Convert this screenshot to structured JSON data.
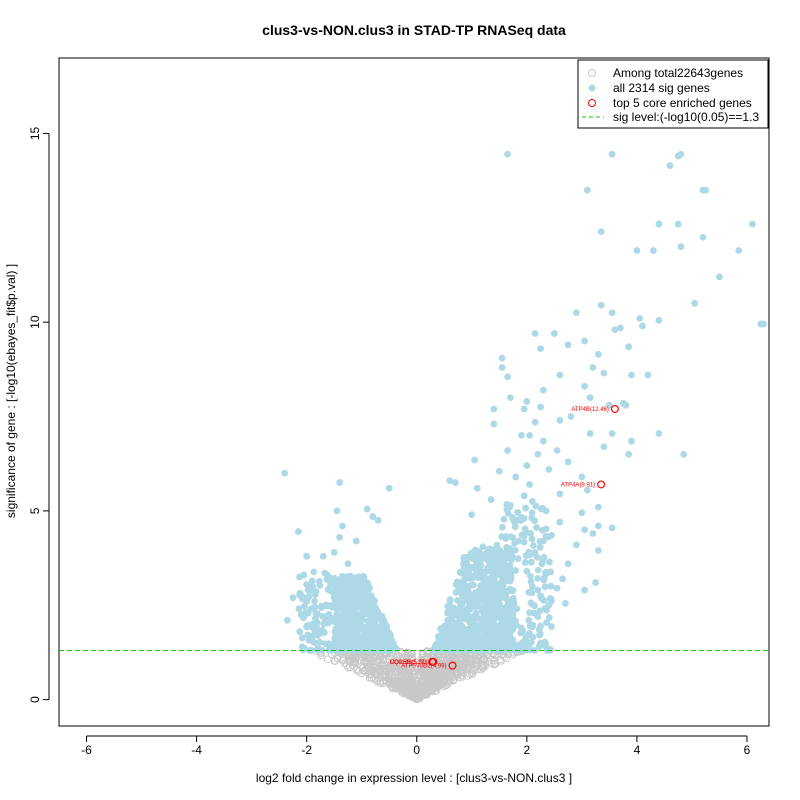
{
  "chart_data": {
    "type": "scatter",
    "title": "clus3-vs-NON.clus3 in STAD-TP RNASeq data",
    "xlabel": "log2 fold change in expression level : [clus3-vs-NON.clus3 ]",
    "ylabel": "significance of gene : [-log10(ebayes_fit$p.val) ]",
    "xlim": [
      -6.5,
      6.4
    ],
    "ylim": [
      -0.7,
      17.0
    ],
    "x_ticks": [
      -6,
      -4,
      -2,
      0,
      2,
      4,
      6
    ],
    "y_ticks": [
      0,
      5,
      10,
      15
    ],
    "sig_level": 1.3,
    "legend": {
      "position": "top-right",
      "entries": [
        {
          "label": "Among total22643genes",
          "marker": "open-circle",
          "color": "#c8c8c8"
        },
        {
          "label": "all 2314 sig genes",
          "marker": "filled-circle",
          "color": "#add8e6"
        },
        {
          "label": "top 5 core enriched genes",
          "marker": "open-circle",
          "color": "#ff0000"
        },
        {
          "label": "sig level:(-log10(0.05)==1.3",
          "marker": "dashed-line",
          "color": "#00cc00"
        }
      ]
    },
    "colors": {
      "nonsig": "#c8c8c8",
      "sig": "#add8e6",
      "core": "#ff0000",
      "siglevel": "#00cc00"
    },
    "sig_points": [
      [
        1.65,
        14.45
      ],
      [
        3.55,
        14.45
      ],
      [
        4.8,
        14.45
      ],
      [
        4.75,
        14.4
      ],
      [
        4.6,
        14.15
      ],
      [
        3.1,
        13.5
      ],
      [
        5.2,
        13.5
      ],
      [
        5.25,
        13.5
      ],
      [
        4.4,
        12.6
      ],
      [
        4.75,
        12.6
      ],
      [
        6.1,
        12.6
      ],
      [
        3.35,
        12.4
      ],
      [
        5.2,
        12.25
      ],
      [
        4.8,
        12.0
      ],
      [
        4.0,
        11.9
      ],
      [
        4.3,
        11.9
      ],
      [
        5.85,
        11.9
      ],
      [
        5.5,
        11.2
      ],
      [
        5.05,
        10.5
      ],
      [
        3.35,
        10.45
      ],
      [
        3.55,
        10.25
      ],
      [
        2.9,
        10.25
      ],
      [
        4.05,
        10.1
      ],
      [
        4.1,
        9.9
      ],
      [
        4.4,
        10.05
      ],
      [
        6.25,
        9.95
      ],
      [
        6.3,
        9.95
      ],
      [
        3.7,
        9.85
      ],
      [
        3.6,
        9.8
      ],
      [
        2.15,
        9.7
      ],
      [
        2.5,
        9.7
      ],
      [
        1.55,
        9.05
      ],
      [
        3.05,
        9.5
      ],
      [
        3.85,
        9.35
      ],
      [
        2.25,
        9.3
      ],
      [
        2.75,
        9.4
      ],
      [
        3.3,
        9.15
      ],
      [
        3.2,
        8.8
      ],
      [
        1.55,
        8.8
      ],
      [
        1.65,
        8.55
      ],
      [
        3.4,
        8.65
      ],
      [
        3.9,
        8.6
      ],
      [
        4.2,
        8.6
      ],
      [
        2.6,
        8.6
      ],
      [
        3.05,
        8.3
      ],
      [
        2.3,
        8.2
      ],
      [
        1.7,
        8.0
      ],
      [
        3.15,
        8.0
      ],
      [
        2.0,
        7.9
      ],
      [
        2.25,
        7.75
      ],
      [
        3.5,
        7.8
      ],
      [
        3.75,
        7.85
      ],
      [
        3.8,
        7.8
      ],
      [
        1.4,
        7.7
      ],
      [
        1.95,
        7.7
      ],
      [
        2.8,
        7.5
      ],
      [
        2.15,
        7.35
      ],
      [
        1.4,
        7.3
      ],
      [
        2.6,
        7.4
      ],
      [
        4.4,
        7.05
      ],
      [
        3.15,
        7.05
      ],
      [
        3.55,
        7.05
      ],
      [
        1.9,
        7.0
      ],
      [
        2.05,
        7.0
      ],
      [
        3.9,
        6.85
      ],
      [
        2.3,
        6.85
      ],
      [
        3.4,
        6.7
      ],
      [
        1.65,
        6.6
      ],
      [
        2.2,
        6.5
      ],
      [
        2.55,
        6.6
      ],
      [
        3.85,
        6.5
      ],
      [
        4.85,
        6.5
      ],
      [
        1.05,
        6.35
      ],
      [
        2.75,
        6.3
      ],
      [
        2.0,
        6.2
      ],
      [
        1.5,
        6.05
      ],
      [
        3.0,
        5.9
      ],
      [
        2.4,
        6.1
      ],
      [
        0.6,
        5.8
      ],
      [
        0.7,
        5.75
      ],
      [
        2.05,
        5.7
      ],
      [
        1.8,
        5.9
      ],
      [
        1.1,
        5.6
      ],
      [
        3.1,
        5.55
      ],
      [
        2.6,
        5.45
      ],
      [
        1.95,
        5.4
      ],
      [
        3.3,
        5.1
      ],
      [
        2.1,
        5.25
      ],
      [
        1.35,
        5.3
      ],
      [
        1.7,
        5.15
      ],
      [
        2.35,
        5.0
      ],
      [
        3.0,
        4.95
      ],
      [
        2.6,
        4.7
      ],
      [
        1.0,
        4.9
      ],
      [
        3.3,
        4.6
      ],
      [
        3.55,
        4.55
      ],
      [
        2.45,
        4.35
      ],
      [
        3.05,
        4.5
      ],
      [
        2.3,
        4.2
      ],
      [
        1.85,
        4.2
      ],
      [
        2.9,
        4.1
      ],
      [
        3.2,
        4.4
      ],
      [
        1.2,
        4.05
      ],
      [
        2.15,
        3.9
      ],
      [
        3.3,
        3.95
      ],
      [
        2.75,
        3.6
      ],
      [
        2.0,
        3.4
      ],
      [
        2.65,
        3.2
      ],
      [
        3.25,
        3.1
      ],
      [
        2.55,
        2.95
      ],
      [
        2.25,
        2.75
      ],
      [
        2.4,
        2.5
      ],
      [
        3.05,
        2.9
      ],
      [
        2.7,
        2.55
      ],
      [
        2.2,
        2.2
      ],
      [
        2.05,
        1.75
      ],
      [
        2.25,
        1.95
      ],
      [
        1.5,
        1.4
      ],
      [
        1.8,
        1.45
      ],
      [
        1.65,
        1.6
      ],
      [
        2.25,
        1.5
      ],
      [
        1.9,
        1.9
      ],
      [
        -2.4,
        6.0
      ],
      [
        -1.4,
        5.75
      ],
      [
        -0.5,
        5.6
      ],
      [
        -0.9,
        5.05
      ],
      [
        -1.45,
        5.0
      ],
      [
        -0.8,
        4.85
      ],
      [
        -0.7,
        4.75
      ],
      [
        -1.35,
        4.6
      ],
      [
        -2.15,
        4.45
      ],
      [
        -1.1,
        4.2
      ],
      [
        -1.4,
        4.3
      ],
      [
        -1.5,
        3.9
      ],
      [
        -1.7,
        3.8
      ],
      [
        -2.0,
        3.8
      ],
      [
        -1.25,
        3.6
      ],
      [
        -2.05,
        3.3
      ],
      [
        -2.0,
        3.05
      ],
      [
        -2.25,
        2.7
      ],
      [
        -2.0,
        2.6
      ],
      [
        -1.85,
        2.45
      ],
      [
        -2.35,
        2.1
      ],
      [
        -2.1,
        2.25
      ],
      [
        -1.9,
        2.0
      ],
      [
        -1.8,
        1.7
      ],
      [
        -1.65,
        2.1
      ]
    ],
    "sig_clusters": [
      {
        "side": "right",
        "inner": 0.3,
        "outer": 1.75,
        "ymin": 1.3,
        "ymax": 4.0,
        "count": 700
      },
      {
        "side": "right",
        "inner": 1.0,
        "outer": 2.45,
        "ymin": 1.3,
        "ymax": 5.2,
        "count": 220
      },
      {
        "side": "left",
        "inner": -0.35,
        "outer": -1.5,
        "ymin": 1.3,
        "ymax": 3.3,
        "count": 620
      },
      {
        "side": "left",
        "inner": -1.0,
        "outer": -2.15,
        "ymin": 1.3,
        "ymax": 3.4,
        "count": 140
      }
    ],
    "nonsig_cloud": {
      "xmin": -1.6,
      "xmax": 2.1,
      "ymax": 1.3,
      "count": 900
    },
    "core_genes": [
      {
        "label": "ATP4B(12.46)",
        "x": 3.6,
        "y": 7.7
      },
      {
        "label": "ATP4A(9.91)",
        "x": 3.35,
        "y": 5.7
      },
      {
        "label": "UQCRH(5.31)",
        "x": 0.3,
        "y": 1.0
      },
      {
        "label": "ATP6V0D2(4.99)",
        "x": 0.65,
        "y": 0.9
      },
      {
        "label": "COX5B(3.27)",
        "x": 0.28,
        "y": 1.0
      }
    ]
  }
}
